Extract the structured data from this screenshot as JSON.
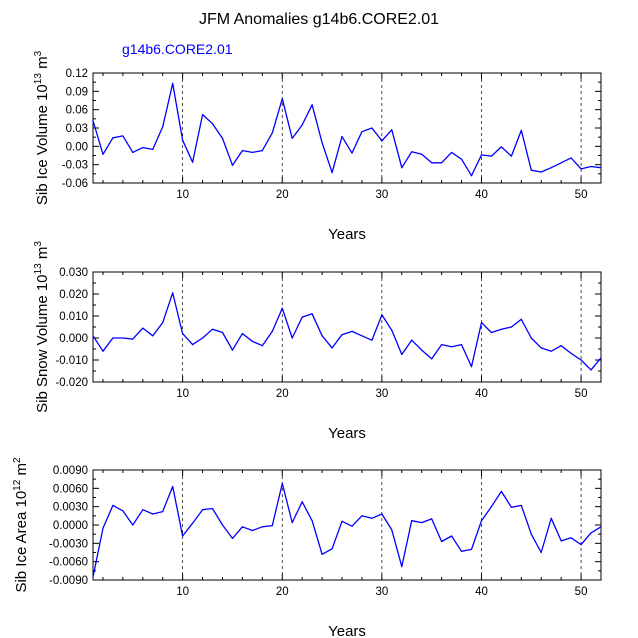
{
  "title": "JFM Anomalies g14b6.CORE2.01",
  "legend_label": "g14b6.CORE2.01",
  "colors": {
    "series": "#0000ff",
    "text": "#000000",
    "background": "#ffffff"
  },
  "chart_data": [
    {
      "type": "line",
      "ylabel_main": "Sib Ice Volume 10",
      "ylabel_exp": "13",
      "ylabel_unit": " m",
      "ylabel_unit_exp": "3",
      "xlabel": "Years",
      "xlim": [
        1,
        52
      ],
      "ylim": [
        -0.06,
        0.12
      ],
      "yticks": [
        0.12,
        0.09,
        0.06,
        0.03,
        0.0,
        -0.03,
        -0.06
      ],
      "ytick_labels": [
        "0.12",
        "0.09",
        "0.06",
        "0.03",
        "0.00",
        "-0.03",
        "-0.06"
      ],
      "xticks": [
        10,
        20,
        30,
        40,
        50
      ],
      "xtick_labels": [
        "10",
        "20",
        "30",
        "40",
        "50"
      ],
      "vlines": [
        10,
        20,
        30,
        40,
        50
      ],
      "x": [
        1,
        2,
        3,
        4,
        5,
        6,
        7,
        8,
        9,
        10,
        11,
        12,
        13,
        14,
        15,
        16,
        17,
        18,
        19,
        20,
        21,
        22,
        23,
        24,
        25,
        26,
        27,
        28,
        29,
        30,
        31,
        32,
        33,
        34,
        35,
        36,
        37,
        38,
        39,
        40,
        41,
        42,
        43,
        44,
        45,
        46,
        47,
        48,
        49,
        50,
        51,
        52
      ],
      "values": [
        0.042,
        -0.013,
        0.014,
        0.017,
        -0.01,
        -0.002,
        -0.005,
        0.032,
        0.103,
        0.01,
        -0.026,
        0.052,
        0.037,
        0.013,
        -0.031,
        -0.007,
        -0.01,
        -0.007,
        0.022,
        0.078,
        0.013,
        0.035,
        0.068,
        0.006,
        -0.043,
        0.016,
        -0.011,
        0.024,
        0.03,
        0.009,
        0.027,
        -0.035,
        -0.009,
        -0.013,
        -0.027,
        -0.027,
        -0.01,
        -0.021,
        -0.048,
        -0.014,
        -0.016,
        -0.001,
        -0.016,
        0.026,
        -0.039,
        -0.042,
        -0.035,
        -0.027,
        -0.019,
        -0.037,
        -0.033,
        -0.035
      ]
    },
    {
      "type": "line",
      "ylabel_main": "Sib Snow Volume 10",
      "ylabel_exp": "13",
      "ylabel_unit": " m",
      "ylabel_unit_exp": "3",
      "xlabel": "Years",
      "xlim": [
        1,
        52
      ],
      "ylim": [
        -0.02,
        0.03
      ],
      "yticks": [
        0.03,
        0.02,
        0.01,
        0.0,
        -0.01,
        -0.02
      ],
      "ytick_labels": [
        "0.030",
        "0.020",
        "0.010",
        "0.000",
        "-0.010",
        "-0.020"
      ],
      "xticks": [
        10,
        20,
        30,
        40,
        50
      ],
      "xtick_labels": [
        "10",
        "20",
        "30",
        "40",
        "50"
      ],
      "vlines": [
        10,
        20,
        30,
        40,
        50
      ],
      "x": [
        1,
        2,
        3,
        4,
        5,
        6,
        7,
        8,
        9,
        10,
        11,
        12,
        13,
        14,
        15,
        16,
        17,
        18,
        19,
        20,
        21,
        22,
        23,
        24,
        25,
        26,
        27,
        28,
        29,
        30,
        31,
        32,
        33,
        34,
        35,
        36,
        37,
        38,
        39,
        40,
        41,
        42,
        43,
        44,
        45,
        46,
        47,
        48,
        49,
        50,
        51,
        52
      ],
      "values": [
        0.001,
        -0.006,
        0.0,
        0.0,
        -0.0005,
        0.0045,
        0.001,
        0.007,
        0.0205,
        0.002,
        -0.003,
        0.0,
        0.004,
        0.0025,
        -0.0055,
        0.002,
        -0.0015,
        -0.0035,
        0.003,
        0.0135,
        0.0,
        0.0095,
        0.011,
        0.001,
        -0.0045,
        0.0015,
        0.003,
        0.001,
        -0.001,
        0.0105,
        0.0035,
        -0.0075,
        -0.001,
        -0.0055,
        -0.0095,
        -0.003,
        -0.004,
        -0.003,
        -0.013,
        0.007,
        0.0025,
        0.004,
        0.005,
        0.0085,
        0.0,
        -0.0045,
        -0.006,
        -0.0035,
        -0.007,
        -0.01,
        -0.0145,
        -0.009
      ]
    },
    {
      "type": "line",
      "ylabel_main": "Sib Ice Area 10",
      "ylabel_exp": "12",
      "ylabel_unit": " m",
      "ylabel_unit_exp": "2",
      "xlabel": "Years",
      "xlim": [
        1,
        52
      ],
      "ylim": [
        -0.009,
        0.009
      ],
      "yticks": [
        0.009,
        0.006,
        0.003,
        0.0,
        -0.003,
        -0.006,
        -0.009
      ],
      "ytick_labels": [
        "0.0090",
        "0.0060",
        "0.0030",
        "0.0000",
        "-0.0030",
        "-0.0060",
        "-0.0090"
      ],
      "xticks": [
        10,
        20,
        30,
        40,
        50
      ],
      "xtick_labels": [
        "10",
        "20",
        "30",
        "40",
        "50"
      ],
      "vlines": [
        10,
        20,
        30,
        40,
        50
      ],
      "x": [
        1,
        2,
        3,
        4,
        5,
        6,
        7,
        8,
        9,
        10,
        11,
        12,
        13,
        14,
        15,
        16,
        17,
        18,
        19,
        20,
        21,
        22,
        23,
        24,
        25,
        26,
        27,
        28,
        29,
        30,
        31,
        32,
        33,
        34,
        35,
        36,
        37,
        38,
        39,
        40,
        41,
        42,
        43,
        44,
        45,
        46,
        47,
        48,
        49,
        50,
        51,
        52
      ],
      "values": [
        -0.0085,
        -0.0005,
        0.0032,
        0.0023,
        0.0,
        0.0025,
        0.0018,
        0.0022,
        0.0063,
        -0.0018,
        0.0003,
        0.0025,
        0.0027,
        0.0,
        -0.0022,
        -0.0003,
        -0.0009,
        -0.0003,
        -0.0001,
        0.0068,
        0.0004,
        0.0038,
        0.0007,
        -0.0048,
        -0.0039,
        0.0006,
        -0.0002,
        0.0015,
        0.0011,
        0.0018,
        -0.0008,
        -0.0068,
        0.0007,
        0.0004,
        0.001,
        -0.0027,
        -0.0018,
        -0.0043,
        -0.004,
        0.0007,
        0.003,
        0.0055,
        0.0029,
        0.0032,
        -0.0015,
        -0.0045,
        0.0011,
        -0.0026,
        -0.0021,
        -0.0032,
        -0.0013,
        -0.0003
      ]
    }
  ]
}
